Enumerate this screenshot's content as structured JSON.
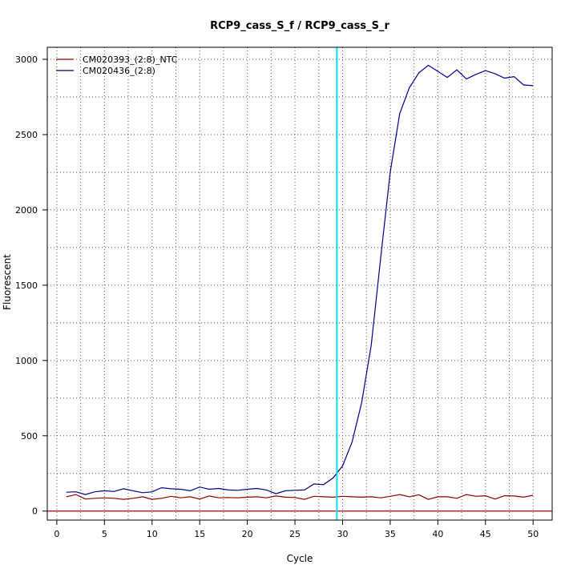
{
  "chart_data": {
    "type": "line",
    "title": "RCP9_cass_S_f / RCP9_cass_S_r",
    "xlabel": "Cycle",
    "ylabel": "Fluorescent",
    "xlim": [
      -1,
      52
    ],
    "ylim": [
      -60,
      3080
    ],
    "xticks": [
      0,
      5,
      10,
      15,
      20,
      25,
      30,
      35,
      40,
      45,
      50
    ],
    "yticks": [
      0,
      500,
      1000,
      1500,
      2000,
      2500,
      3000
    ],
    "grid": true,
    "legend_position": "top-left",
    "threshold_cycle": 29.4,
    "threshold_color": "#00e5ee",
    "baseline_value": 0,
    "baseline_color": "#c00000",
    "x": [
      1,
      2,
      3,
      4,
      5,
      6,
      7,
      8,
      9,
      10,
      11,
      12,
      13,
      14,
      15,
      16,
      17,
      18,
      19,
      20,
      21,
      22,
      23,
      24,
      25,
      26,
      27,
      28,
      29,
      30,
      31,
      32,
      33,
      34,
      35,
      36,
      37,
      38,
      39,
      40,
      41,
      42,
      43,
      44,
      45,
      46,
      47,
      48,
      49,
      50
    ],
    "series": [
      {
        "name": "CM020393_(2:8)_NTC",
        "color": "#8b0000",
        "values": [
          95,
          110,
          80,
          85,
          88,
          85,
          78,
          85,
          95,
          78,
          85,
          98,
          88,
          95,
          80,
          100,
          88,
          90,
          88,
          92,
          95,
          88,
          100,
          92,
          90,
          78,
          98,
          95,
          92,
          98,
          95,
          92,
          95,
          88,
          98,
          110,
          95,
          108,
          78,
          95,
          95,
          85,
          110,
          98,
          102,
          80,
          102,
          100,
          92,
          105
        ]
      },
      {
        "name": "CM020436_(2:8)",
        "color": "#00008b",
        "values": [
          125,
          128,
          110,
          128,
          135,
          130,
          148,
          135,
          122,
          128,
          155,
          148,
          145,
          135,
          160,
          145,
          150,
          140,
          138,
          145,
          150,
          140,
          115,
          135,
          138,
          140,
          180,
          175,
          220,
          300,
          460,
          720,
          1100,
          1680,
          2250,
          2640,
          2810,
          2910,
          2960,
          2920,
          2880,
          2930,
          2870,
          2900,
          2925,
          2905,
          2875,
          2885,
          2830,
          2825
        ]
      }
    ]
  }
}
